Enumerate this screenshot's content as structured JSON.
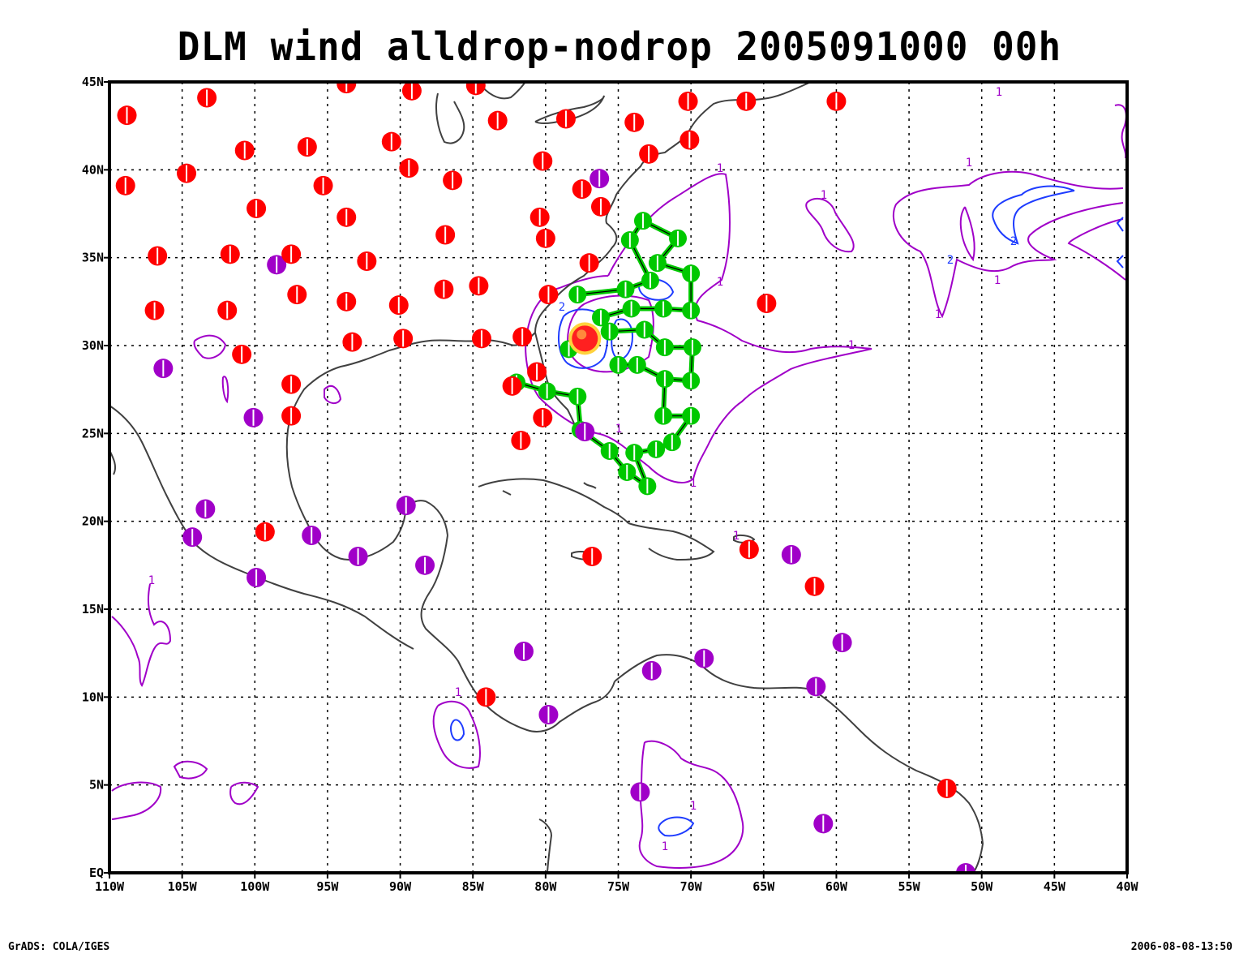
{
  "title": "DLM wind alldrop-nodrop 2005091000 00h",
  "footer": {
    "left": "GrADS: COLA/IGES",
    "right": "2006-08-08-13:50"
  },
  "axes": {
    "lat_labels": [
      "45N",
      "40N",
      "35N",
      "30N",
      "25N",
      "20N",
      "15N",
      "10N",
      "5N",
      "EQ"
    ],
    "lat_values": [
      45,
      40,
      35,
      30,
      25,
      20,
      15,
      10,
      5,
      0
    ],
    "lon_labels": [
      "110W",
      "105W",
      "100W",
      "95W",
      "90W",
      "85W",
      "80W",
      "75W",
      "70W",
      "65W",
      "60W",
      "55W",
      "50W",
      "45W",
      "40W"
    ],
    "lon_values": [
      -110,
      -105,
      -100,
      -95,
      -90,
      -85,
      -80,
      -75,
      -70,
      -65,
      -60,
      -55,
      -50,
      -45,
      -40
    ],
    "lon_range": [
      -110,
      -40
    ],
    "lat_range": [
      0,
      45
    ],
    "grid": "dotted"
  },
  "colors": {
    "raob_site": "#ff0000",
    "other_site": "#a000c8",
    "dropsonde": "#00c800",
    "contour_1": "#a000c8",
    "contour_2": "#1e3cff",
    "coast": "#404040",
    "frame": "#000000"
  },
  "contour_labels": [
    "1",
    "2"
  ],
  "map_data": {
    "red_sites": [
      [
        -108.8,
        43.1
      ],
      [
        -103.3,
        44.1
      ],
      [
        -93.7,
        44.9
      ],
      [
        -89.2,
        44.5
      ],
      [
        -84.8,
        44.8
      ],
      [
        -108.9,
        39.1
      ],
      [
        -104.7,
        39.8
      ],
      [
        -100.7,
        41.1
      ],
      [
        -96.4,
        41.3
      ],
      [
        -90.6,
        41.6
      ],
      [
        -89.4,
        40.1
      ],
      [
        -83.3,
        42.8
      ],
      [
        -78.6,
        42.9
      ],
      [
        -73.9,
        42.7
      ],
      [
        -70.2,
        43.9
      ],
      [
        -66.2,
        43.9
      ],
      [
        -60.0,
        43.9
      ],
      [
        -72.9,
        40.9
      ],
      [
        -70.1,
        41.7
      ],
      [
        -80.2,
        40.5
      ],
      [
        -86.4,
        39.4
      ],
      [
        -77.5,
        38.9
      ],
      [
        -76.2,
        37.9
      ],
      [
        -99.9,
        37.8
      ],
      [
        -95.3,
        39.1
      ],
      [
        -93.7,
        37.3
      ],
      [
        -86.9,
        36.3
      ],
      [
        -80.4,
        37.3
      ],
      [
        -80.0,
        36.1
      ],
      [
        -106.7,
        35.1
      ],
      [
        -101.7,
        35.2
      ],
      [
        -97.5,
        35.2
      ],
      [
        -92.3,
        34.8
      ],
      [
        -77.0,
        34.7
      ],
      [
        -106.9,
        32.0
      ],
      [
        -101.9,
        32.0
      ],
      [
        -97.1,
        32.9
      ],
      [
        -93.7,
        32.5
      ],
      [
        -90.1,
        32.3
      ],
      [
        -87.0,
        33.2
      ],
      [
        -84.6,
        33.4
      ],
      [
        -79.8,
        32.9
      ],
      [
        -100.9,
        29.5
      ],
      [
        -93.3,
        30.2
      ],
      [
        -89.8,
        30.4
      ],
      [
        -84.4,
        30.4
      ],
      [
        -81.6,
        30.5
      ],
      [
        -77.3,
        30.4
      ],
      [
        -80.6,
        28.5
      ],
      [
        -82.3,
        27.7
      ],
      [
        -97.5,
        27.8
      ],
      [
        -97.5,
        26.0
      ],
      [
        -80.2,
        25.9
      ],
      [
        -81.7,
        24.6
      ],
      [
        -64.8,
        32.4
      ],
      [
        -99.3,
        19.4
      ],
      [
        -76.8,
        18.0
      ],
      [
        -66.0,
        18.4
      ],
      [
        -61.5,
        16.3
      ],
      [
        -84.1,
        10.0
      ],
      [
        -52.4,
        4.8
      ]
    ],
    "purple_sites": [
      [
        -76.3,
        39.5
      ],
      [
        -98.5,
        34.6
      ],
      [
        -106.3,
        28.7
      ],
      [
        -100.1,
        25.9
      ],
      [
        -103.4,
        20.7
      ],
      [
        -104.3,
        19.1
      ],
      [
        -96.1,
        19.2
      ],
      [
        -92.9,
        18.0
      ],
      [
        -89.6,
        20.9
      ],
      [
        -88.3,
        17.5
      ],
      [
        -99.9,
        16.8
      ],
      [
        -81.5,
        12.6
      ],
      [
        -79.8,
        9.0
      ],
      [
        -72.7,
        11.5
      ],
      [
        -69.1,
        12.2
      ],
      [
        -73.5,
        4.6
      ],
      [
        -63.1,
        18.1
      ],
      [
        -59.6,
        13.1
      ],
      [
        -61.4,
        10.6
      ],
      [
        -60.9,
        2.8
      ],
      [
        -51.1,
        0.0
      ],
      [
        -77.3,
        25.1
      ]
    ],
    "drop_sites": [
      [
        -73.3,
        37.1
      ],
      [
        -70.9,
        36.1
      ],
      [
        -74.2,
        36.0
      ],
      [
        -72.3,
        34.7
      ],
      [
        -70.0,
        34.1
      ],
      [
        -72.8,
        33.7
      ],
      [
        -74.5,
        33.2
      ],
      [
        -77.8,
        32.9
      ],
      [
        -76.2,
        31.6
      ],
      [
        -74.1,
        32.1
      ],
      [
        -71.9,
        32.1
      ],
      [
        -70.0,
        32.0
      ],
      [
        -75.6,
        30.8
      ],
      [
        -73.2,
        30.9
      ],
      [
        -71.8,
        29.9
      ],
      [
        -69.9,
        29.9
      ],
      [
        -75.0,
        28.9
      ],
      [
        -73.7,
        28.9
      ],
      [
        -71.8,
        28.1
      ],
      [
        -70.0,
        28.0
      ],
      [
        -79.9,
        27.4
      ],
      [
        -77.8,
        27.1
      ],
      [
        -71.9,
        26.0
      ],
      [
        -70.0,
        26.0
      ],
      [
        -77.6,
        25.2
      ],
      [
        -75.6,
        24.0
      ],
      [
        -73.9,
        23.9
      ],
      [
        -72.4,
        24.1
      ],
      [
        -71.3,
        24.5
      ],
      [
        -74.4,
        22.8
      ],
      [
        -73.0,
        22.0
      ],
      [
        -82.0,
        27.9
      ],
      [
        -78.4,
        29.8
      ]
    ],
    "drop_tracks": [
      [
        [
          -82.0,
          27.9
        ],
        [
          -79.9,
          27.4
        ],
        [
          -77.8,
          27.1
        ],
        [
          -77.6,
          25.2
        ],
        [
          -75.6,
          24.0
        ],
        [
          -74.4,
          22.8
        ],
        [
          -73.0,
          22.0
        ],
        [
          -73.9,
          23.9
        ],
        [
          -72.4,
          24.1
        ],
        [
          -71.3,
          24.5
        ],
        [
          -70.0,
          26.0
        ],
        [
          -71.9,
          26.0
        ],
        [
          -71.8,
          28.1
        ],
        [
          -70.0,
          28.0
        ],
        [
          -69.9,
          29.9
        ],
        [
          -71.8,
          29.9
        ],
        [
          -73.2,
          30.9
        ],
        [
          -75.6,
          30.8
        ],
        [
          -76.2,
          31.6
        ],
        [
          -74.1,
          32.1
        ],
        [
          -71.9,
          32.1
        ],
        [
          -70.0,
          32.0
        ],
        [
          -70.0,
          34.1
        ],
        [
          -72.3,
          34.7
        ],
        [
          -70.9,
          36.1
        ],
        [
          -73.3,
          37.1
        ],
        [
          -74.2,
          36.0
        ],
        [
          -72.8,
          33.7
        ],
        [
          -74.5,
          33.2
        ],
        [
          -77.8,
          32.9
        ]
      ],
      [
        [
          -75.0,
          28.9
        ],
        [
          -73.7,
          28.9
        ],
        [
          -71.8,
          28.1
        ]
      ]
    ],
    "storm": [
      -77.3,
      30.4
    ]
  }
}
